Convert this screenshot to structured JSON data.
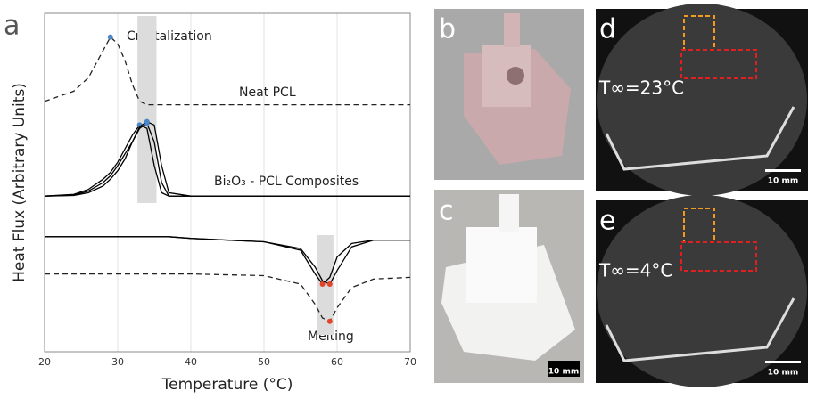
{
  "chart_data": {
    "type": "line",
    "panel_label": "a",
    "x_label": "Temperature (°C)",
    "y_label": "Heat Flux (Arbitrary Units)",
    "annotations": [
      "Crystalization",
      "Neat PCL",
      "Bi₂O₃ - PCL Composites",
      "Melting"
    ],
    "x": [
      20,
      24,
      26,
      28,
      29,
      30,
      31,
      32,
      33,
      34,
      35,
      36,
      37,
      40,
      50,
      55,
      57,
      58,
      59,
      60,
      62,
      65,
      70
    ],
    "series": [
      {
        "color": "#222222",
        "dashed": true,
        "peak": "max",
        "peak_color": "#4a86c8",
        "values": [
          74,
          77,
          81,
          89,
          93,
          91,
          86,
          79,
          74,
          73,
          73,
          73,
          73,
          73,
          73,
          73,
          73,
          73,
          73,
          73,
          73,
          73,
          73
        ]
      },
      {
        "color": "#000000",
        "dashed": false,
        "peak": "max",
        "peak_color": "#4a86c8",
        "values": [
          46,
          46.5,
          48,
          51,
          53,
          56,
          60,
          64,
          67,
          66,
          55,
          47,
          46,
          46,
          46,
          46,
          46,
          46,
          46,
          46,
          46,
          46,
          46
        ]
      },
      {
        "color": "#000000",
        "dashed": false,
        "peak": "max",
        "peak_color": "#4a86c8",
        "values": [
          46,
          46.3,
          47.5,
          50,
          52,
          55,
          58.5,
          62,
          66,
          67.5,
          62,
          50,
          46,
          46,
          46,
          46,
          46,
          46,
          46,
          46,
          46,
          46,
          46
        ]
      },
      {
        "color": "#000000",
        "dashed": false,
        "peak": "max",
        "peak_color": "#4a86c8",
        "values": [
          46,
          46.2,
          47,
          49,
          51,
          53.5,
          57,
          62,
          66.5,
          68,
          67,
          55,
          47,
          46,
          46,
          46,
          46,
          46,
          46,
          46,
          46,
          46,
          46
        ]
      },
      {
        "color": "#000000",
        "dashed": false,
        "peak": "min",
        "peak_color": "#e0452a",
        "values": [
          34,
          34,
          34,
          34,
          34,
          34,
          34,
          34,
          34,
          34,
          34,
          34,
          34,
          33.5,
          32.5,
          30,
          23,
          20,
          22,
          28,
          32,
          33,
          33
        ]
      },
      {
        "color": "#000000",
        "dashed": false,
        "peak": "min",
        "peak_color": "#e0452a",
        "values": [
          34,
          34,
          34,
          34,
          34,
          34,
          34,
          34,
          34,
          34,
          34,
          34,
          34,
          33.5,
          32.5,
          30.5,
          25,
          21,
          20,
          24,
          31,
          33,
          33
        ]
      },
      {
        "color": "#222222",
        "dashed": true,
        "peak": "min",
        "peak_color": "#e0452a",
        "values": [
          23,
          23,
          23,
          23,
          23,
          23,
          23,
          23,
          23,
          23,
          23,
          23,
          23,
          23,
          22.5,
          20,
          14,
          10,
          9,
          13,
          19,
          21.5,
          22
        ]
      }
    ],
    "shaded_ranges": [
      [
        32.7,
        35.3
      ],
      [
        57.3,
        59.5
      ]
    ],
    "xlim": [
      20,
      70
    ],
    "ylim": [
      0,
      100
    ],
    "xticks": [
      20,
      30,
      40,
      50,
      60,
      70
    ],
    "grid": true
  },
  "panels": [
    {
      "label": "b"
    },
    {
      "label": "c",
      "scale_bar": "10 mm"
    },
    {
      "label": "d",
      "temperature": "T∞=23°C",
      "scale_bar": "10 mm"
    },
    {
      "label": "e",
      "temperature": "T∞=4°C",
      "scale_bar": "10 mm"
    }
  ]
}
